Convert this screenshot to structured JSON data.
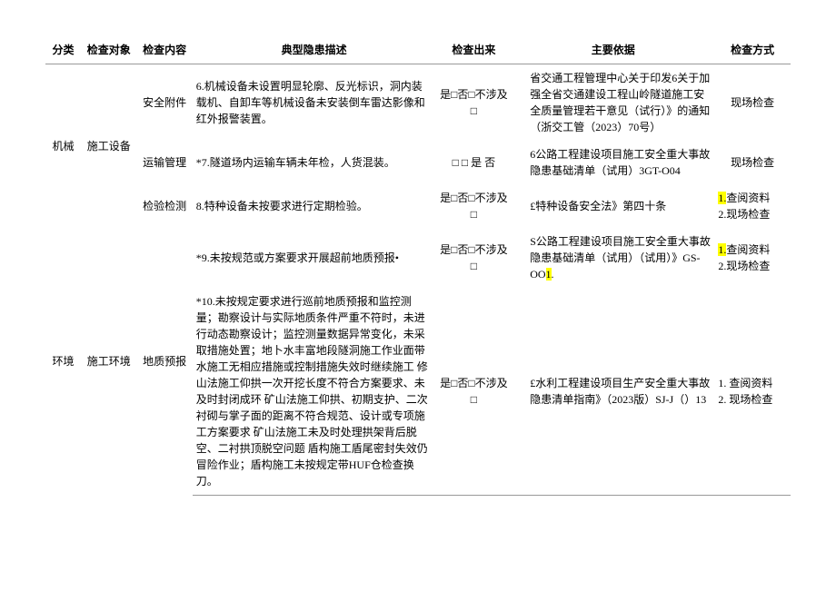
{
  "headers": {
    "category": "分类",
    "object": "检查对象",
    "content": "检查内容",
    "description": "典型隐患描述",
    "result": "检查出来",
    "basis": "主要依据",
    "method": "检查方式"
  },
  "cells": {
    "cat_machine": "机械",
    "cat_env": "环境",
    "obj_equip": "施工设备",
    "obj_env": "施工环境",
    "cont_safety": "安全附件",
    "cont_transport": "运输管理",
    "cont_inspect": "检验检测",
    "cont_geo": "地质预报"
  },
  "rows": {
    "r1": {
      "desc": "6.机械设备未设置明显轮廓、反光标识，洞内装载机、自卸车等机械设备未安装倒车雷达影像和红外报警装置。",
      "result": "是□否□不涉及□",
      "basis": "省交通工程管理中心关于印发6关于加强全省交通建设工程山岭隧道施工安全质量管理若干意见（试行）》的通知（浙交工管（2023）70号）",
      "method": "现场检查"
    },
    "r2": {
      "desc": "*7.隧道场内运输车辆未年检，人货混装。",
      "result": "□ □ 是 否",
      "basis": "6公路工程建设项目施工安全重大事故隐患基础清单（试用）3GT-O04",
      "method": "现场检查"
    },
    "r3": {
      "desc": "8.特种设备未按要求进行定期检验。",
      "result": "是□否□不涉及□",
      "basis": "£特种设备安全法》第四十条",
      "method_a": "1.",
      "method_b": "查阅资料",
      "method_c": "2.现场检查"
    },
    "r4": {
      "desc": "*9.未按规范或方案要求开展超前地质预报•",
      "result": "是□否□不涉及□",
      "basis_a": "S公路工程建设项目施工安全重大事故隐患基础清单（试用）（试用）》GS-OO",
      "basis_b": "1",
      "basis_c": ".",
      "method_a": "1.",
      "method_b": "查阅资料",
      "method_c": "2.现场检查"
    },
    "r5": {
      "desc": "*10.未按规定要求进行巡前地质预报和监控测量；勘察设计与实际地质条件严重不符时，未进行动态勘察设计；监控测量数据异常变化，未采取措施处置；地卜水丰富地段隧洞施工作业面带水施工无相应措施或控制措施失效时继续施工 修山法施工仰拱一次开挖长度不符合方案要求、未及时封闭成环 矿山法施工仰拱、初期支护、二次衬砌与掌子面的距离不符合规范、设计或专项施工方案要求 矿山法施工未及时处理拱架背后脱空、二衬拱顶脱空问题 盾构施工盾尾密封失效仍冒险作业；盾构施工未按规定带HUF仓检查换刀。",
      "result": "是□否□不涉及□",
      "basis": "£水利工程建设项目生产安全重大事故隐患清单指南》（2023版）SJ-J（）13",
      "method": "1. 查阅资料\n2. 现场检查"
    }
  }
}
